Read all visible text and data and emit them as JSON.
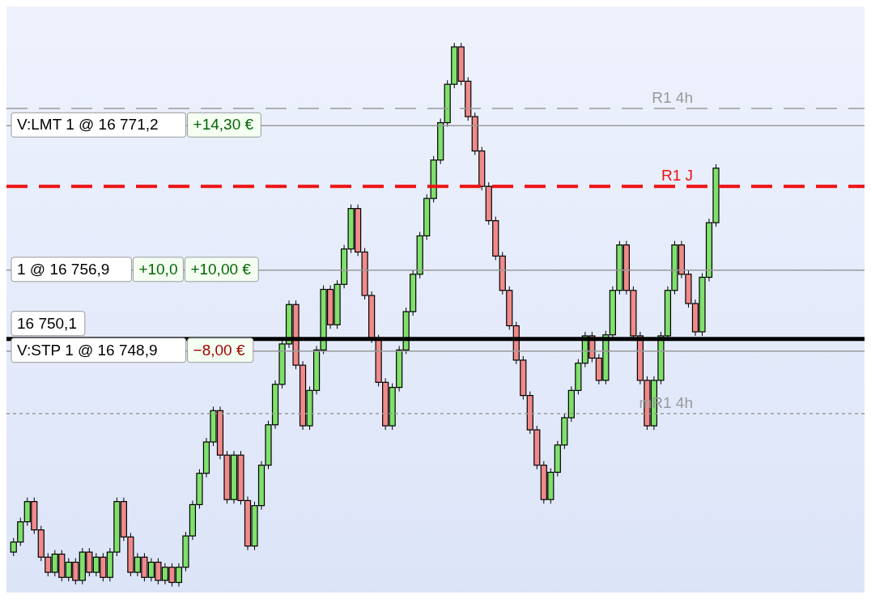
{
  "chart_data": {
    "type": "candlestick",
    "categories": [
      null,
      null,
      null,
      null,
      null,
      null,
      null,
      null,
      null,
      null,
      null,
      null,
      null,
      null,
      null,
      null,
      null,
      null,
      null,
      null,
      null,
      null,
      null,
      null,
      null,
      null,
      null,
      null,
      null,
      null,
      null,
      null,
      null,
      null,
      null,
      null,
      null,
      null,
      null,
      null,
      null,
      null,
      null,
      null,
      null,
      null,
      null,
      null,
      null,
      null,
      null,
      null,
      null,
      null,
      null,
      null,
      null,
      null,
      null,
      null,
      null,
      null,
      null,
      null,
      null,
      null,
      null,
      null,
      null,
      null,
      null,
      null,
      null,
      null,
      null,
      null,
      null,
      null,
      null,
      null,
      null,
      null,
      null,
      null,
      null,
      null,
      null,
      null,
      null,
      null,
      null,
      null,
      null,
      null,
      null,
      null,
      null,
      null,
      null,
      null,
      null,
      null,
      null
    ],
    "ohlc": [
      [
        16729.0,
        16730.4,
        16728.6,
        16730.0
      ],
      [
        16730.0,
        16732.4,
        16729.6,
        16732.0
      ],
      [
        16732.0,
        16734.4,
        16731.6,
        16734.0
      ],
      [
        16734.0,
        16734.4,
        16730.8,
        16731.2
      ],
      [
        16731.2,
        16731.6,
        16728.1,
        16728.5
      ],
      [
        16728.5,
        16728.9,
        16726.6,
        16727.0
      ],
      [
        16727.0,
        16729.2,
        16726.6,
        16728.8
      ],
      [
        16728.8,
        16729.2,
        16726.1,
        16726.5
      ],
      [
        16726.5,
        16728.4,
        16726.1,
        16728.0
      ],
      [
        16728.0,
        16728.4,
        16725.8,
        16726.2
      ],
      [
        16726.2,
        16729.4,
        16725.8,
        16729.0
      ],
      [
        16729.0,
        16729.4,
        16726.6,
        16727.0
      ],
      [
        16727.0,
        16728.9,
        16726.6,
        16728.5
      ],
      [
        16728.5,
        16728.9,
        16726.1,
        16726.5
      ],
      [
        16726.5,
        16729.4,
        16726.1,
        16729.0
      ],
      [
        16729.0,
        16734.4,
        16728.6,
        16734.0
      ],
      [
        16734.0,
        16734.4,
        16730.1,
        16730.5
      ],
      [
        16730.5,
        16730.9,
        16726.6,
        16727.0
      ],
      [
        16727.0,
        16728.9,
        16726.6,
        16728.5
      ],
      [
        16728.5,
        16728.9,
        16726.1,
        16726.5
      ],
      [
        16726.5,
        16728.4,
        16726.1,
        16728.0
      ],
      [
        16728.0,
        16728.4,
        16725.8,
        16726.2
      ],
      [
        16726.2,
        16727.9,
        16725.8,
        16727.5
      ],
      [
        16727.5,
        16727.9,
        16725.6,
        16726.0
      ],
      [
        16726.0,
        16727.9,
        16725.6,
        16727.5
      ],
      [
        16727.5,
        16731.0,
        16727.1,
        16730.6
      ],
      [
        16730.6,
        16734.1,
        16730.2,
        16733.7
      ],
      [
        16733.7,
        16737.2,
        16733.3,
        16736.8
      ],
      [
        16736.8,
        16740.3,
        16736.4,
        16739.9
      ],
      [
        16739.9,
        16743.4,
        16739.5,
        16743.0
      ],
      [
        16743.0,
        16743.4,
        16738.2,
        16738.6
      ],
      [
        16738.6,
        16739.0,
        16733.8,
        16734.2
      ],
      [
        16734.2,
        16739.0,
        16733.8,
        16738.6
      ],
      [
        16738.6,
        16739.0,
        16733.7,
        16734.1
      ],
      [
        16734.1,
        16734.5,
        16729.2,
        16729.6
      ],
      [
        16729.6,
        16734.0,
        16729.2,
        16733.6
      ],
      [
        16733.6,
        16738.0,
        16733.2,
        16737.6
      ],
      [
        16737.6,
        16742.0,
        16737.2,
        16741.6
      ],
      [
        16741.6,
        16746.0,
        16741.2,
        16745.6
      ],
      [
        16745.6,
        16750.0,
        16745.2,
        16749.6
      ],
      [
        16749.6,
        16753.9,
        16749.2,
        16753.5
      ],
      [
        16753.5,
        16753.9,
        16747.1,
        16747.5
      ],
      [
        16747.5,
        16747.9,
        16741.1,
        16741.5
      ],
      [
        16741.5,
        16745.4,
        16741.1,
        16745.0
      ],
      [
        16745.0,
        16749.4,
        16744.6,
        16749.0
      ],
      [
        16749.0,
        16755.4,
        16748.6,
        16755.0
      ],
      [
        16755.0,
        16755.4,
        16751.1,
        16751.5
      ],
      [
        16751.5,
        16755.9,
        16751.1,
        16755.5
      ],
      [
        16755.5,
        16759.4,
        16755.1,
        16759.0
      ],
      [
        16759.0,
        16763.4,
        16758.6,
        16763.0
      ],
      [
        16763.0,
        16763.4,
        16758.3,
        16758.7
      ],
      [
        16758.7,
        16759.1,
        16754.0,
        16754.4
      ],
      [
        16754.4,
        16754.8,
        16749.7,
        16750.1
      ],
      [
        16750.1,
        16750.5,
        16745.4,
        16745.8
      ],
      [
        16745.8,
        16746.2,
        16741.1,
        16741.5
      ],
      [
        16741.5,
        16745.7,
        16741.1,
        16745.3
      ],
      [
        16745.3,
        16749.4,
        16744.9,
        16749.0
      ],
      [
        16749.0,
        16753.2,
        16748.6,
        16752.8
      ],
      [
        16752.8,
        16756.9,
        16752.4,
        16756.5
      ],
      [
        16756.5,
        16760.7,
        16756.1,
        16760.3
      ],
      [
        16760.3,
        16764.4,
        16759.9,
        16764.0
      ],
      [
        16764.0,
        16768.2,
        16763.6,
        16767.8
      ],
      [
        16767.8,
        16771.9,
        16767.4,
        16771.5
      ],
      [
        16771.5,
        16775.7,
        16771.1,
        16775.3
      ],
      [
        16775.3,
        16779.4,
        16774.9,
        16779.0
      ],
      [
        16779.0,
        16779.4,
        16775.2,
        16775.6
      ],
      [
        16775.6,
        16776.0,
        16771.7,
        16772.1
      ],
      [
        16772.1,
        16772.5,
        16768.3,
        16768.7
      ],
      [
        16768.7,
        16769.1,
        16764.8,
        16765.2
      ],
      [
        16765.2,
        16765.6,
        16761.4,
        16761.8
      ],
      [
        16761.8,
        16762.2,
        16757.9,
        16758.3
      ],
      [
        16758.3,
        16758.7,
        16754.5,
        16754.9
      ],
      [
        16754.9,
        16755.3,
        16751.0,
        16751.4
      ],
      [
        16751.4,
        16751.8,
        16747.6,
        16748.0
      ],
      [
        16748.0,
        16748.4,
        16744.1,
        16744.5
      ],
      [
        16744.5,
        16744.9,
        16740.7,
        16741.1
      ],
      [
        16741.1,
        16741.5,
        16737.2,
        16737.6
      ],
      [
        16737.6,
        16738.0,
        16733.8,
        16734.2
      ],
      [
        16734.2,
        16737.3,
        16733.8,
        16736.9
      ],
      [
        16736.9,
        16740.0,
        16736.5,
        16739.6
      ],
      [
        16739.6,
        16742.7,
        16739.2,
        16742.3
      ],
      [
        16742.3,
        16745.4,
        16741.9,
        16745.0
      ],
      [
        16745.0,
        16748.1,
        16744.6,
        16747.7
      ],
      [
        16747.7,
        16750.8,
        16747.3,
        16750.4
      ],
      [
        16750.4,
        16750.8,
        16747.8,
        16748.2
      ],
      [
        16748.2,
        16748.6,
        16745.6,
        16746.0
      ],
      [
        16746.0,
        16750.9,
        16745.6,
        16750.5
      ],
      [
        16750.5,
        16755.3,
        16750.1,
        16754.9
      ],
      [
        16754.9,
        16759.8,
        16754.5,
        16759.4
      ],
      [
        16759.4,
        16759.8,
        16754.5,
        16754.9
      ],
      [
        16754.9,
        16755.3,
        16750.0,
        16750.4
      ],
      [
        16750.4,
        16750.8,
        16745.6,
        16746.0
      ],
      [
        16746.0,
        16746.4,
        16741.1,
        16741.5
      ],
      [
        16741.5,
        16746.4,
        16741.1,
        16746.0
      ],
      [
        16746.0,
        16750.8,
        16745.6,
        16750.4
      ],
      [
        16750.4,
        16755.3,
        16750.0,
        16754.9
      ],
      [
        16754.9,
        16759.8,
        16754.5,
        16759.4
      ],
      [
        16759.4,
        16759.8,
        16756.1,
        16756.5
      ],
      [
        16756.5,
        16756.9,
        16753.2,
        16753.6
      ],
      [
        16753.6,
        16754.0,
        16750.4,
        16750.8
      ],
      [
        16750.8,
        16756.6,
        16750.4,
        16756.2
      ],
      [
        16756.2,
        16762.0,
        16755.8,
        16761.6
      ],
      [
        16761.6,
        16767.4,
        16761.2,
        16767.0
      ]
    ],
    "ylim": [
      16725,
      16783
    ],
    "tick_labels": false,
    "ref_lines": [
      {
        "axis": "y",
        "value": 16772.9,
        "label": "R1 4h",
        "color": "#999999",
        "line_style": "dashed"
      },
      {
        "axis": "y",
        "value": 16771.2,
        "label": "V:LMT  1  @  16 771,2",
        "color": "#999999",
        "line_style": "solid"
      },
      {
        "axis": "y",
        "value": 16765.2,
        "label": "R1 J",
        "color": "#ee1111",
        "line_style": "dashed"
      },
      {
        "axis": "y",
        "value": 16756.9,
        "label": "1  @  16 756,9",
        "color": "#999999",
        "line_style": "solid"
      },
      {
        "axis": "y",
        "value": 16750.1,
        "label": "16 750,1",
        "color": "#000000",
        "line_style": "solid"
      },
      {
        "axis": "y",
        "value": 16748.9,
        "label": "V:STP  1  @  16 748,9",
        "color": "#999999",
        "line_style": "solid"
      },
      {
        "axis": "y",
        "value": 16742.7,
        "label": "mR1 4h",
        "color": "#999999",
        "line_style": "dotted"
      }
    ],
    "annotations": [
      {
        "text": "+14,30 €",
        "y": 16771.2
      },
      {
        "text": "+10,0",
        "y": 16756.9
      },
      {
        "text": "+10,00 €",
        "y": 16756.9
      },
      {
        "text": "−8,00 €",
        "y": 16748.9
      }
    ]
  }
}
